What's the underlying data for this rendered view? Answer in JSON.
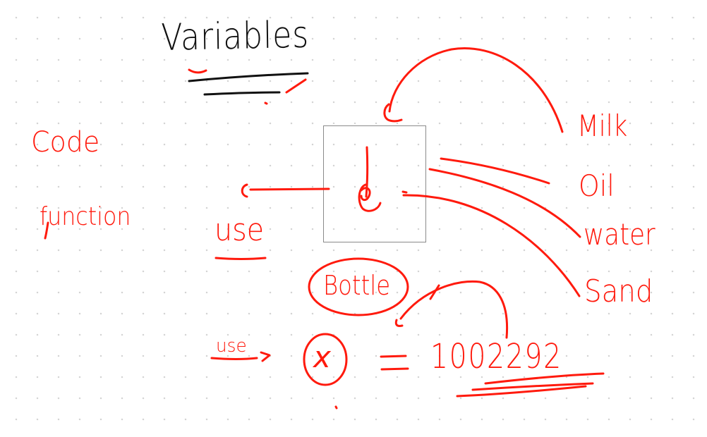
{
  "notes": {
    "title": "Variables",
    "code": "Code",
    "function": "function",
    "use_left": "use",
    "milk": "Milk",
    "oil": "Oil",
    "water": "water",
    "sand": "Sand",
    "bottle": "Bottle",
    "use_arrow": "use",
    "x": "x",
    "equals": "=",
    "value": "1002292"
  },
  "colors": {
    "ink_red": "#ff1a0d",
    "ink_black": "#111111",
    "grid_dot": "#d4d4d4",
    "box_border": "#8a8a8a"
  }
}
